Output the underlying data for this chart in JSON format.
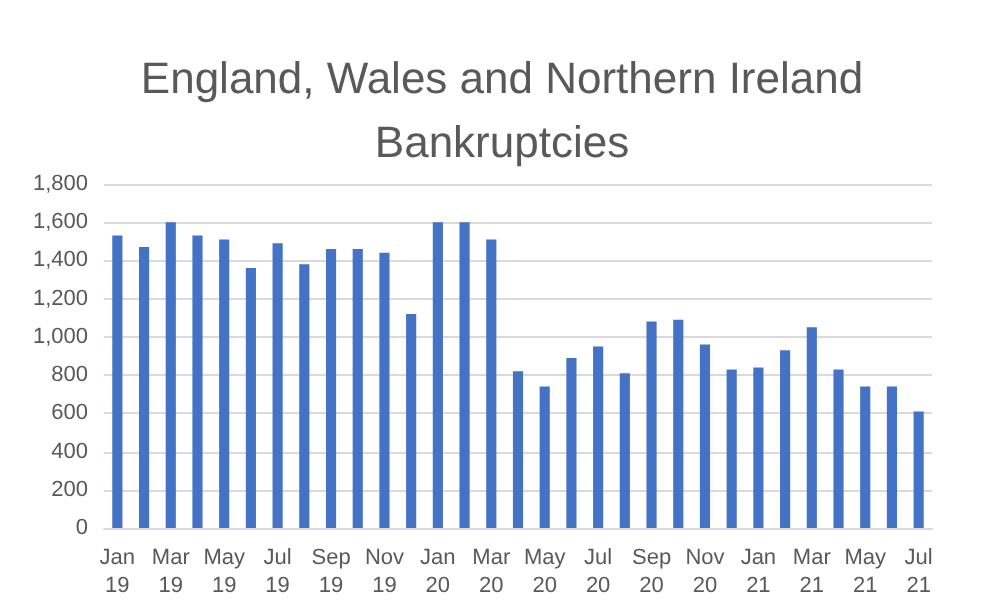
{
  "chart_data": {
    "type": "bar",
    "title": "England, Wales and Northern Ireland\nBankruptcies",
    "categories": [
      "Jan 19",
      null,
      "Mar 19",
      null,
      "May 19",
      null,
      "Jul 19",
      null,
      "Sep 19",
      null,
      "Nov 19",
      null,
      "Jan 20",
      null,
      "Mar 20",
      null,
      "May 20",
      null,
      "Jul 20",
      null,
      "Sep 20",
      null,
      "Nov 20",
      null,
      "Jan 21",
      null,
      "Mar 21",
      null,
      "May 21",
      null,
      "Jul 21"
    ],
    "values": [
      1530,
      1470,
      1600,
      1530,
      1510,
      1360,
      1490,
      1380,
      1460,
      1460,
      1440,
      1120,
      1600,
      1600,
      1510,
      820,
      740,
      890,
      950,
      810,
      1080,
      1090,
      960,
      830,
      840,
      930,
      1050,
      830,
      740,
      740,
      610
    ],
    "color": "#4472c4",
    "ylim": [
      0,
      1800
    ],
    "yticks": [
      0,
      200,
      400,
      600,
      800,
      {
        "value": 1000,
        "label": "1,000"
      },
      {
        "value": 1200,
        "label": "1,200"
      },
      {
        "value": 1400,
        "label": "1,400"
      },
      {
        "value": 1600,
        "label": "1,600"
      },
      {
        "value": 1800,
        "label": "1,800"
      }
    ],
    "grid": "y"
  }
}
